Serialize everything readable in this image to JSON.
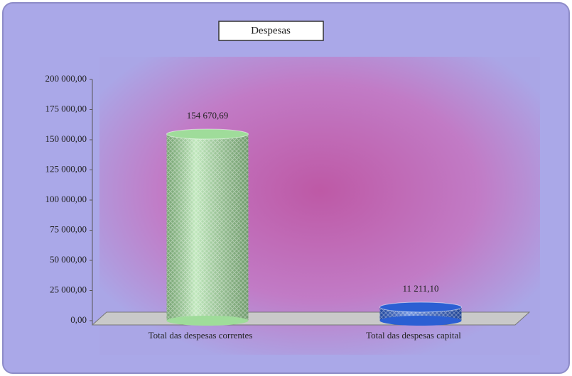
{
  "chart_data": {
    "type": "bar",
    "title": "Despesas",
    "categories": [
      "Total das despesas correntes",
      "Total das despesas capital"
    ],
    "values": [
      154670.69,
      11211.1
    ],
    "value_labels": [
      "154 670,69",
      "11 211,10"
    ],
    "colors": [
      "#9fdc9a",
      "#2b5fd3"
    ],
    "ylim": [
      0,
      200000
    ],
    "yticks": [
      {
        "value": 0,
        "label": "0,00"
      },
      {
        "value": 25000,
        "label": "25 000,00"
      },
      {
        "value": 50000,
        "label": "50 000,00"
      },
      {
        "value": 75000,
        "label": "75 000,00"
      },
      {
        "value": 100000,
        "label": "100 000,00"
      },
      {
        "value": 125000,
        "label": "125 000,00"
      },
      {
        "value": 150000,
        "label": "150 000,00"
      },
      {
        "value": 175000,
        "label": "175 000,00"
      },
      {
        "value": 200000,
        "label": "200 000,00"
      }
    ]
  }
}
